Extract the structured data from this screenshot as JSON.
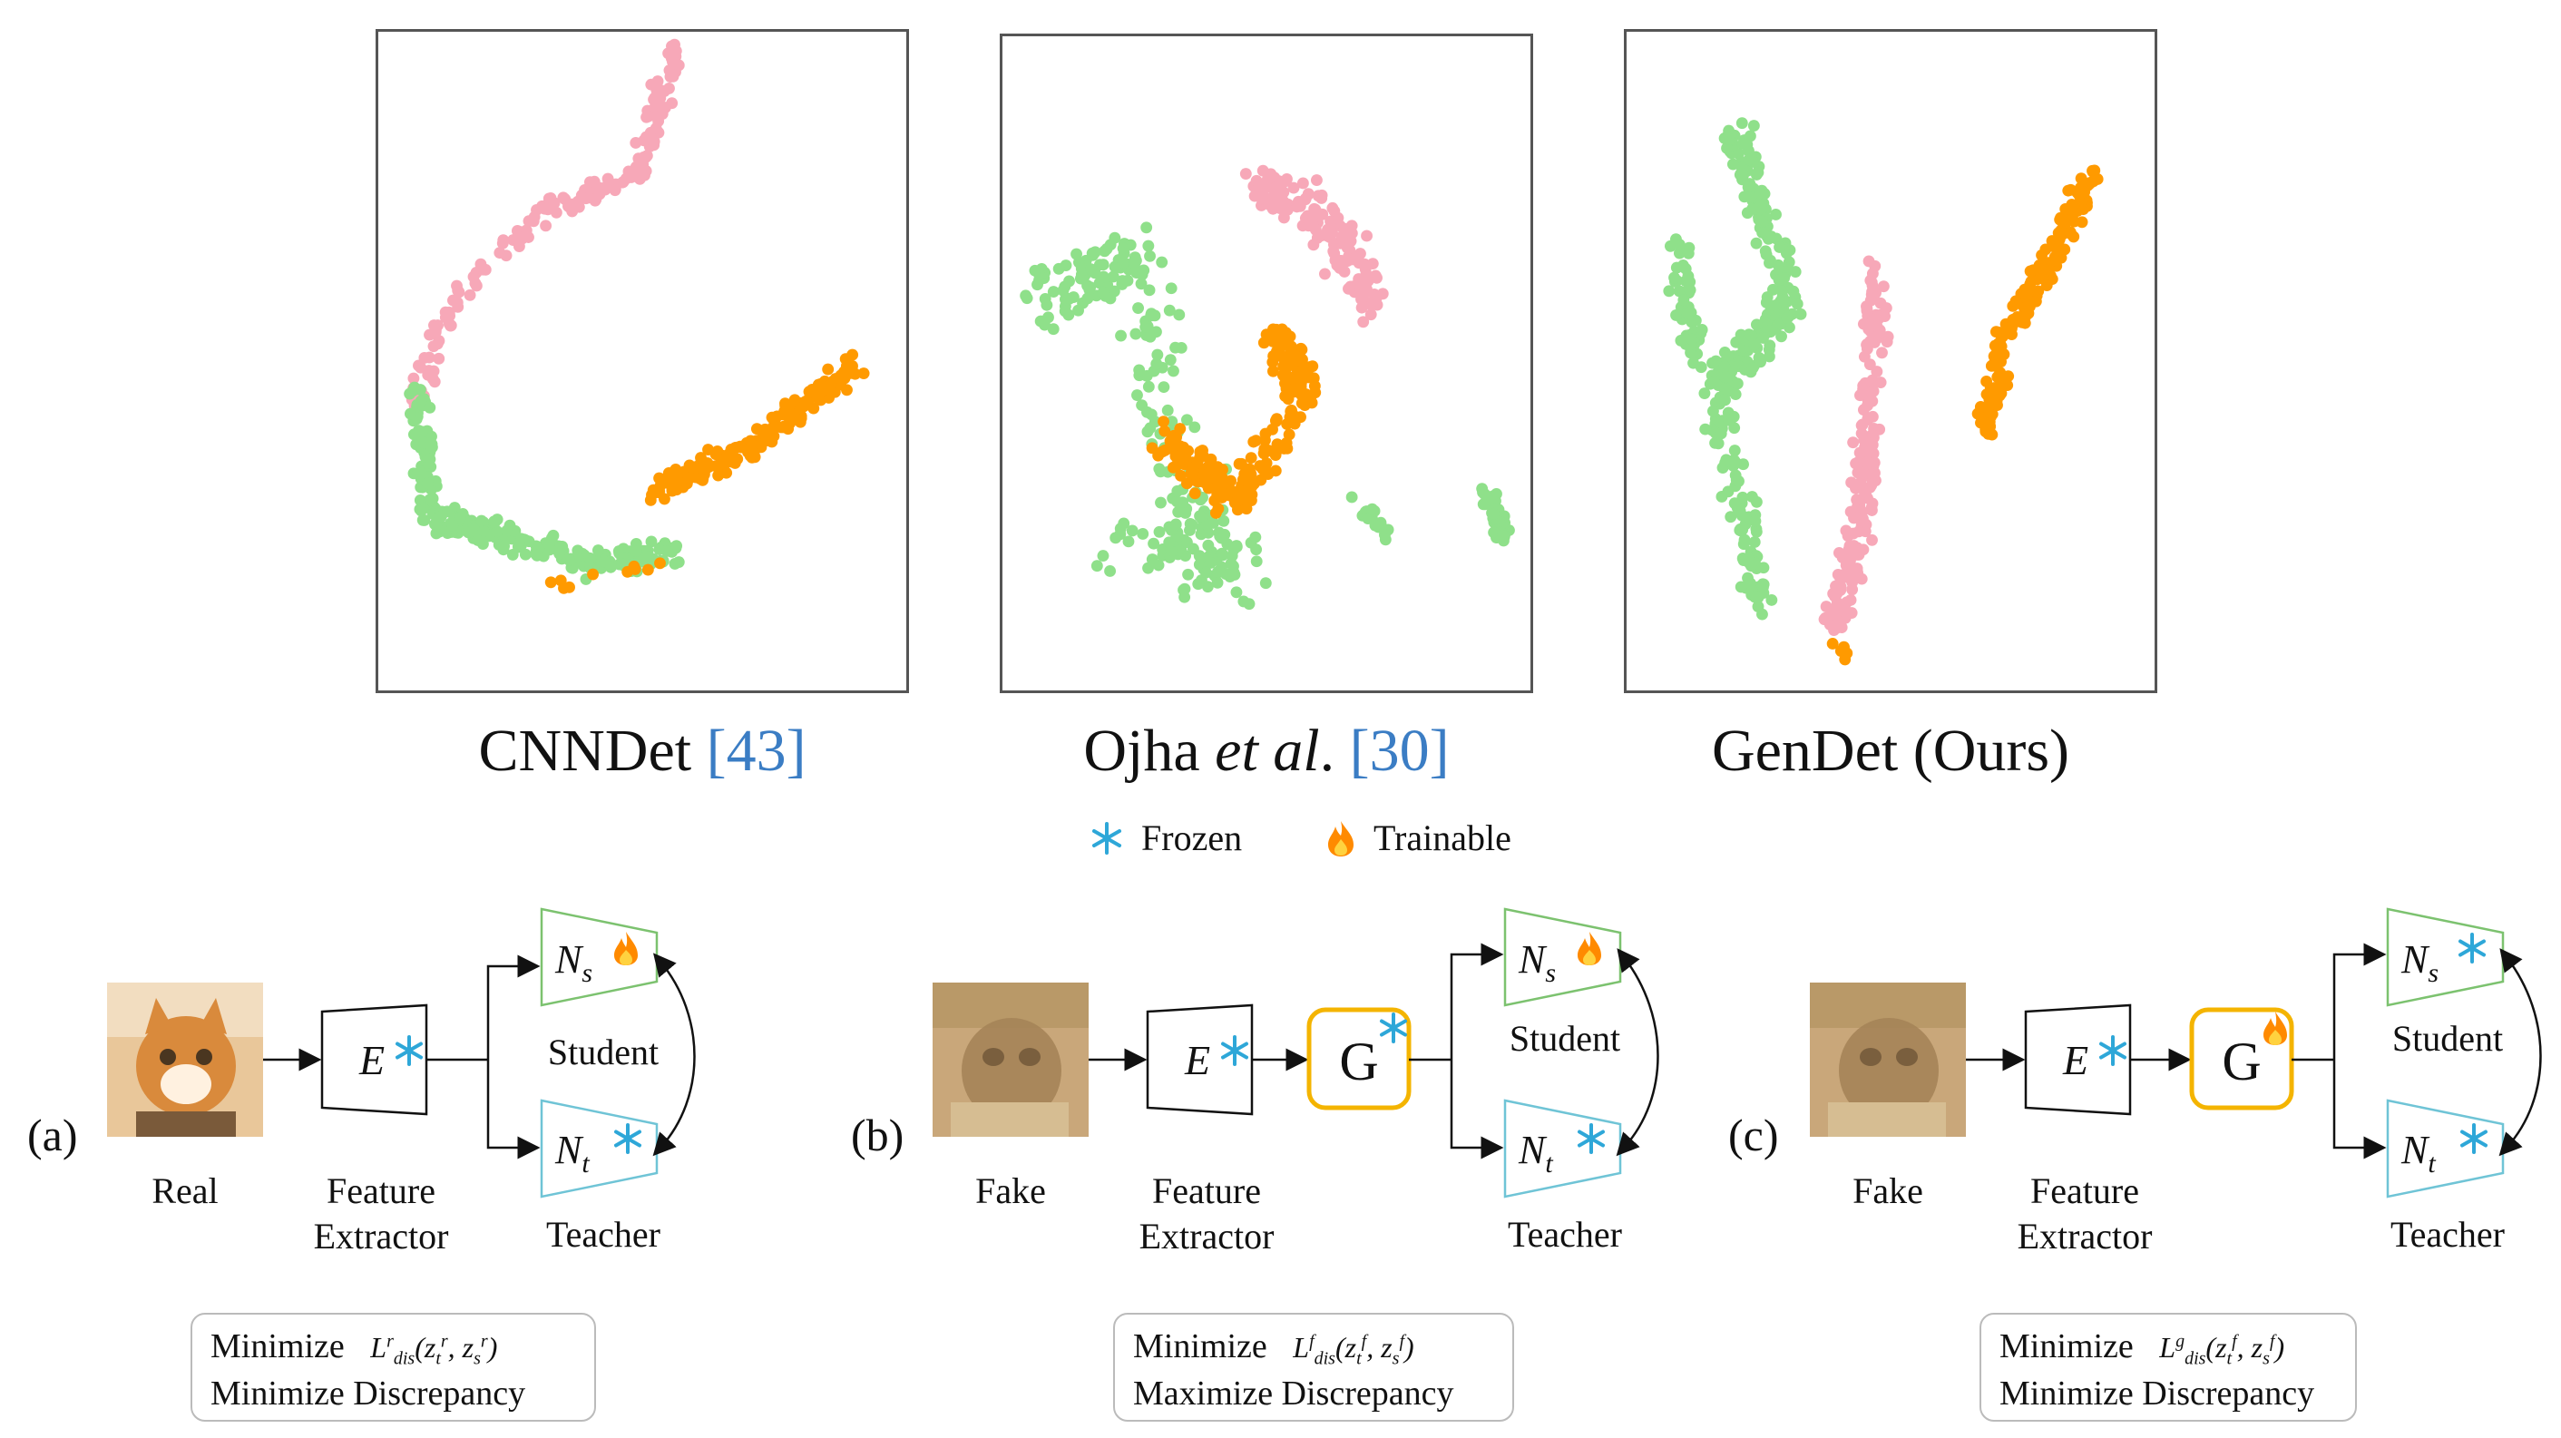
{
  "scatter_plots": [
    {
      "caption_main": "CNNDet ",
      "caption_cite": "[43]",
      "caption_italic": "",
      "caption_tail": ""
    },
    {
      "caption_main": "Ojha ",
      "caption_italic": "et al",
      "caption_tail": ". ",
      "caption_cite": "[30]"
    },
    {
      "caption_main": "GenDet (Ours)",
      "caption_cite": "",
      "caption_italic": "",
      "caption_tail": ""
    }
  ],
  "legend": {
    "frozen_label": "Frozen",
    "trainable_label": "Trainable",
    "frozen_icon": "snowflake-icon",
    "trainable_icon": "flame-icon"
  },
  "colors": {
    "real_points": "#8fe08a",
    "pink_points": "#f7a8b8",
    "orange_points": "#ff9a00",
    "student_trapezoid": "#7cc26f",
    "teacher_trapezoid": "#6fc4d6",
    "generator_border": "#f4b400",
    "snowflake": "#2ea7d8"
  },
  "panels": [
    {
      "letter": "(a)",
      "input_label": "Real",
      "extractor_label_1": "Feature",
      "extractor_label_2": "Extractor",
      "extractor_symbol": "E",
      "student_symbol": "N",
      "student_sub": "s",
      "teacher_symbol": "N",
      "teacher_sub": "t",
      "student_label": "Student",
      "teacher_label": "Teacher",
      "loss_line1_word": "Minimize",
      "loss_line1_formula": "L",
      "loss_sup": "r",
      "loss_args": "(z",
      "loss_line2": "Minimize  Discrepancy"
    },
    {
      "letter": "(b)",
      "input_label": "Fake",
      "extractor_label_1": "Feature",
      "extractor_label_2": "Extractor",
      "extractor_symbol": "E",
      "generator_symbol": "G",
      "student_symbol": "N",
      "student_sub": "s",
      "teacher_symbol": "N",
      "teacher_sub": "t",
      "student_label": "Student",
      "teacher_label": "Teacher",
      "loss_line1_word": "Minimize",
      "loss_line1_formula": "L",
      "loss_sup": "f",
      "loss_args": "(z",
      "loss_line2": "Maximize Discrepancy"
    },
    {
      "letter": "(c)",
      "input_label": "Fake",
      "extractor_label_1": "Feature",
      "extractor_label_2": "Extractor",
      "extractor_symbol": "E",
      "generator_symbol": "G",
      "student_symbol": "N",
      "student_sub": "s",
      "teacher_symbol": "N",
      "teacher_sub": "t",
      "student_label": "Student",
      "teacher_label": "Teacher",
      "loss_line1_word": "Minimize",
      "loss_line1_formula": "L",
      "loss_sup": "g",
      "loss_args": "(z",
      "loss_line2": "Minimize  Discrepancy"
    }
  ]
}
